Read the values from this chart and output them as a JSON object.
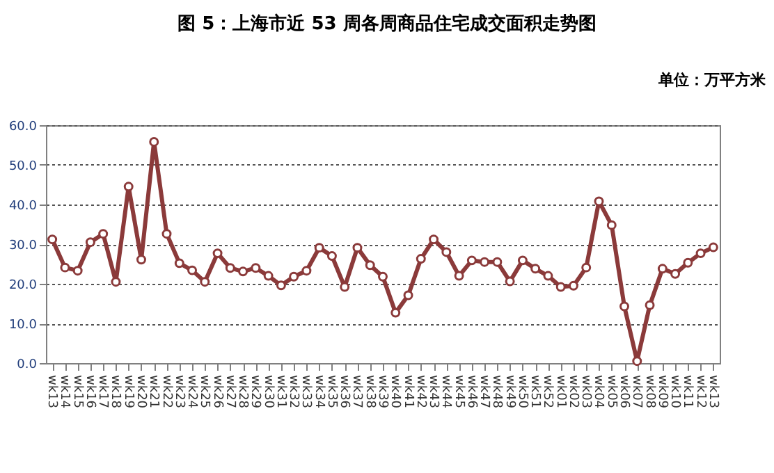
{
  "chart_data": {
    "type": "line",
    "title": "图 5：上海市近 53 周各周商品住宅成交面积走势图",
    "ylabel": "单位：万平方米",
    "categories": [
      "wk13",
      "wk14",
      "wk15",
      "wk16",
      "wk17",
      "wk18",
      "wk19",
      "wk20",
      "wk21",
      "wk22",
      "wk23",
      "wk24",
      "wk25",
      "wk26",
      "wk27",
      "wk28",
      "wk29",
      "wk30",
      "wk31",
      "wk32",
      "wk33",
      "wk34",
      "wk35",
      "wk36",
      "wk37",
      "wk38",
      "wk39",
      "wk40",
      "wk41",
      "wk42",
      "wk43",
      "wk44",
      "wk45",
      "wk46",
      "wk47",
      "wk48",
      "wk49",
      "wk50",
      "wk51",
      "wk52",
      "wk01",
      "wk02",
      "wk03",
      "wk04",
      "wk05",
      "wk06",
      "wk07",
      "wk08",
      "wk09",
      "wk10",
      "wk11",
      "wk12",
      "wk13"
    ],
    "series": [
      {
        "color": "#8b3a3a",
        "values": [
          31.2,
          24.1,
          23.3,
          30.5,
          32.6,
          20.5,
          44.5,
          26.1,
          55.8,
          32.6,
          25.2,
          23.4,
          20.5,
          27.7,
          24.0,
          23.1,
          24.0,
          22.0,
          19.6,
          21.8,
          23.3,
          29.1,
          27.0,
          19.2,
          29.1,
          24.7,
          21.8,
          12.7,
          17.1,
          26.3,
          31.2,
          28.0,
          22.0,
          25.9,
          25.5,
          25.5,
          20.6,
          25.9,
          23.8,
          22.0,
          19.2,
          19.5,
          24.1,
          40.8,
          34.8,
          14.3,
          0.5,
          14.6,
          23.8,
          22.5,
          25.3,
          27.7,
          29.2
        ]
      }
    ],
    "ylim": [
      0,
      60
    ],
    "yticks": [
      {
        "value": 0,
        "label": "0.0"
      },
      {
        "value": 10,
        "label": "10.0"
      },
      {
        "value": 20,
        "label": "20.0"
      },
      {
        "value": 30,
        "label": "30.0"
      },
      {
        "value": 40,
        "label": "40.0"
      },
      {
        "value": 50,
        "label": "50.0"
      },
      {
        "value": 60,
        "label": "60.0"
      }
    ],
    "grid": "y",
    "marker": "circle",
    "line_style": "solid",
    "legend": false
  }
}
